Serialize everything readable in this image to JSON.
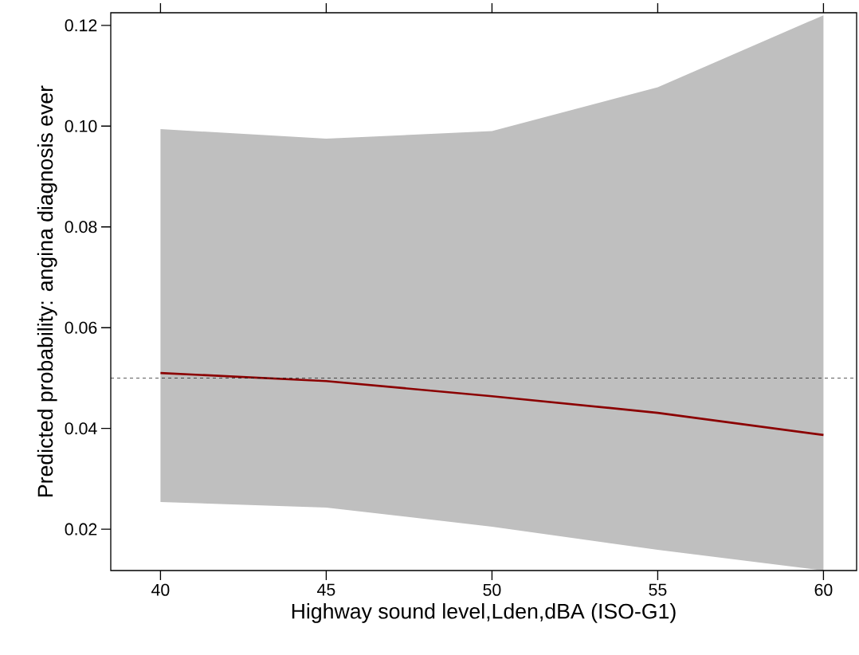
{
  "chart_data": {
    "type": "line",
    "xlabel": "Highway sound level,Lden,dBA (ISO-G1)",
    "ylabel": "Predicted probability: angina diagnosis ever",
    "x": [
      40,
      45,
      50,
      55,
      60
    ],
    "series": [
      {
        "color": "#8b0000",
        "values": [
          0.051,
          0.0494,
          0.0464,
          0.0431,
          0.0387
        ],
        "lower": [
          0.0254,
          0.0243,
          0.0205,
          0.0159,
          0.0118
        ],
        "upper": [
          0.0994,
          0.0975,
          0.099,
          0.1077,
          0.122
        ]
      }
    ],
    "xlim": [
      38.5,
      61
    ],
    "ylim": [
      0.0118,
      0.1225
    ],
    "xticks": [
      40,
      45,
      50,
      55,
      60
    ],
    "yticks": [
      0.02,
      0.04,
      0.06,
      0.08,
      {
        "value": 0.1,
        "label": "0.10"
      },
      0.12
    ],
    "ref_lines": [
      {
        "axis": "y",
        "value": 0.05,
        "color": "#000000",
        "line_style": "dashed"
      }
    ],
    "marker": "none",
    "line_style": "solid"
  }
}
